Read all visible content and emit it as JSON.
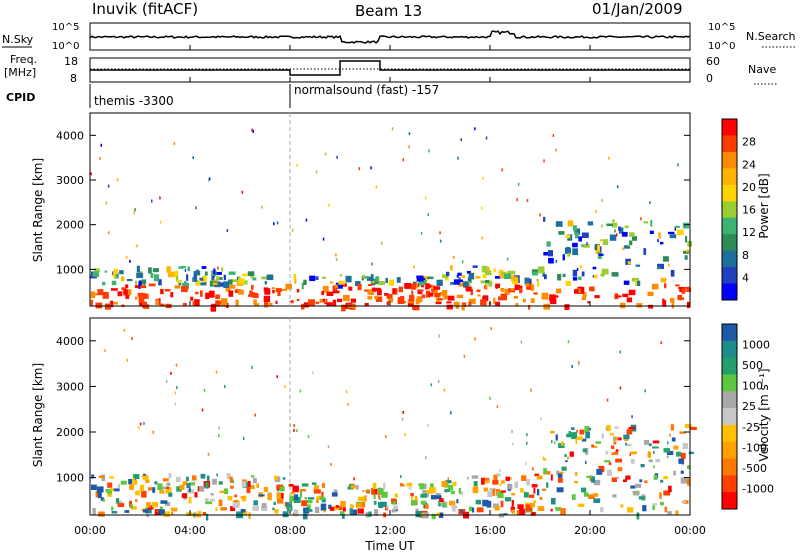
{
  "header": {
    "station": "Inuvik (fitACF)",
    "beam": "Beam 13",
    "date": "01/Jan/2009"
  },
  "top_panels": {
    "nsky_label": "N.Sky",
    "nsky_ticks": [
      "10^5",
      "10^0"
    ],
    "nsearch_label": "N.Search",
    "freq_label": "Freq.",
    "freq_unit": "[MHz]",
    "freq_ticks": [
      "18",
      "8"
    ],
    "nave_label": "Nave",
    "nave_ticks": [
      "60",
      "0"
    ],
    "cpid_label": "CPID",
    "cpid_segments": [
      {
        "label": "themis -3300",
        "start_hour": 0
      },
      {
        "label": "normalsound (fast) -157",
        "start_hour": 8
      }
    ]
  },
  "chart_data": [
    {
      "type": "heatmap",
      "name": "power",
      "ylabel": "Slant Range [km]",
      "yticks": [
        "4000",
        "3000",
        "2000",
        "1000"
      ],
      "ylim": [
        180,
        4500
      ],
      "colorbar": {
        "label": "Power [dB]",
        "ticks": [
          "28",
          "24",
          "20",
          "16",
          "12",
          "8",
          "4"
        ],
        "colors": [
          "#ff0000",
          "#ff3c00",
          "#ff8c00",
          "#ffb400",
          "#ffd400",
          "#9acd32",
          "#3cb371",
          "#2e8b57",
          "#1e6fa0",
          "#2040c0",
          "#0000ff"
        ]
      }
    },
    {
      "type": "heatmap",
      "name": "velocity",
      "ylabel": "Slant Range [km]",
      "yticks": [
        "4000",
        "3000",
        "2000",
        "1000"
      ],
      "ylim": [
        180,
        4500
      ],
      "colorbar": {
        "label": "Velocity [m s⁻¹]",
        "ticks": [
          "1000",
          "500",
          "100",
          "25",
          "-25",
          "-100",
          "-500",
          "-1000"
        ],
        "colors": [
          "#1e5aa8",
          "#1e8c8c",
          "#22a06b",
          "#5cc840",
          "#a8a8a8",
          "#c8c8c8",
          "#ffc000",
          "#ffa000",
          "#ff7800",
          "#ff4000",
          "#ff0000"
        ]
      }
    }
  ],
  "x_axis": {
    "ticks": [
      "00:00",
      "04:00",
      "08:00",
      "12:00",
      "16:00",
      "20:00",
      "00:00"
    ],
    "label": "Time UT"
  }
}
